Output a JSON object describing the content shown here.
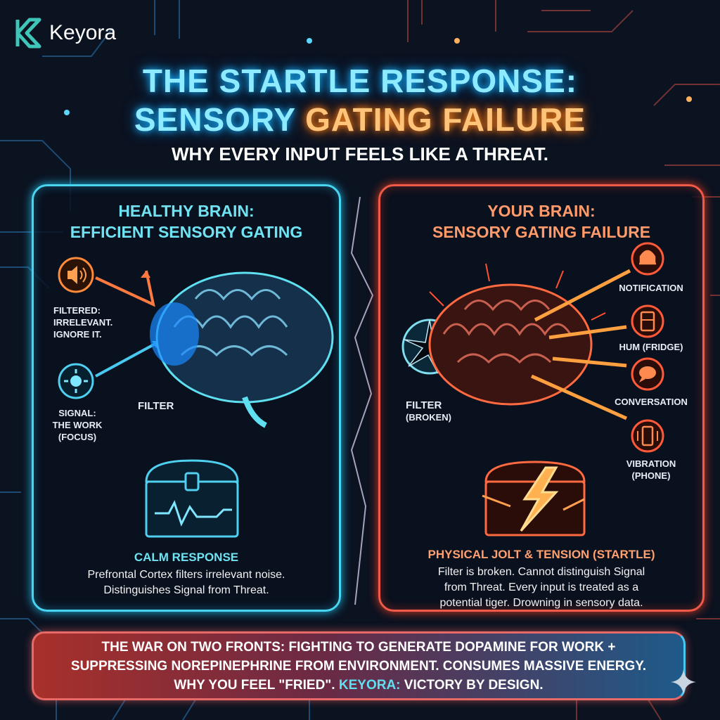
{
  "brand": {
    "name": "Keyora",
    "logo_icon": "k-logo-icon"
  },
  "title": {
    "line1": "THE STARTLE RESPONSE:",
    "line2_a": "SENSORY",
    "line2_b": "GATING FAILURE",
    "subtitle": "WHY EVERY INPUT FEELS LIKE A THREAT."
  },
  "left_panel": {
    "heading1": "HEALTHY BRAIN:",
    "heading2": "EFFICIENT SENSORY GATING",
    "filtered_label": [
      "FILTERED:",
      "IRRELEVANT.",
      "IGNORE IT."
    ],
    "signal_label": [
      "SIGNAL:",
      "THE WORK",
      "(FOCUS)"
    ],
    "filter_label": "FILTER",
    "section_title": "CALM RESPONSE",
    "body": [
      "Prefrontal Cortex filters irrelevant noise.",
      "Distinguishes Signal from Threat."
    ],
    "accent": "#49d5f0"
  },
  "right_panel": {
    "heading1": "YOUR BRAIN:",
    "heading2": "SENSORY GATING FAILURE",
    "filter_label": "FILTER",
    "filter_sub": "(BROKEN)",
    "inputs": [
      {
        "label": "NOTIFICATION",
        "icon": "bell-icon"
      },
      {
        "label": "HUM (FRIDGE)",
        "icon": "fridge-icon"
      },
      {
        "label": "CONVERSATION",
        "icon": "chat-icon"
      },
      {
        "label": "VIBRATION",
        "label2": "(PHONE)",
        "icon": "phone-icon"
      }
    ],
    "section_title": "PHYSICAL JOLT & TENSION (STARTLE)",
    "body": [
      "Filter is broken. Cannot distinguish Signal",
      "from Threat. Every input is treated as a",
      "potential tiger. Drowning in sensory data."
    ],
    "accent": "#f05a48"
  },
  "banner": {
    "line1": "THE WAR ON TWO FRONTS: FIGHTING TO GENERATE DOPAMINE FOR WORK +",
    "line2": "SUPPRESSING NOREPINEPHRINE FROM ENVIRONMENT. CONSUMES MASSIVE ENERGY.",
    "line3_a": "WHY YOU FEEL \"FRIED\".",
    "line3_b": "KEYORA:",
    "line3_c": "VICTORY BY DESIGN."
  }
}
